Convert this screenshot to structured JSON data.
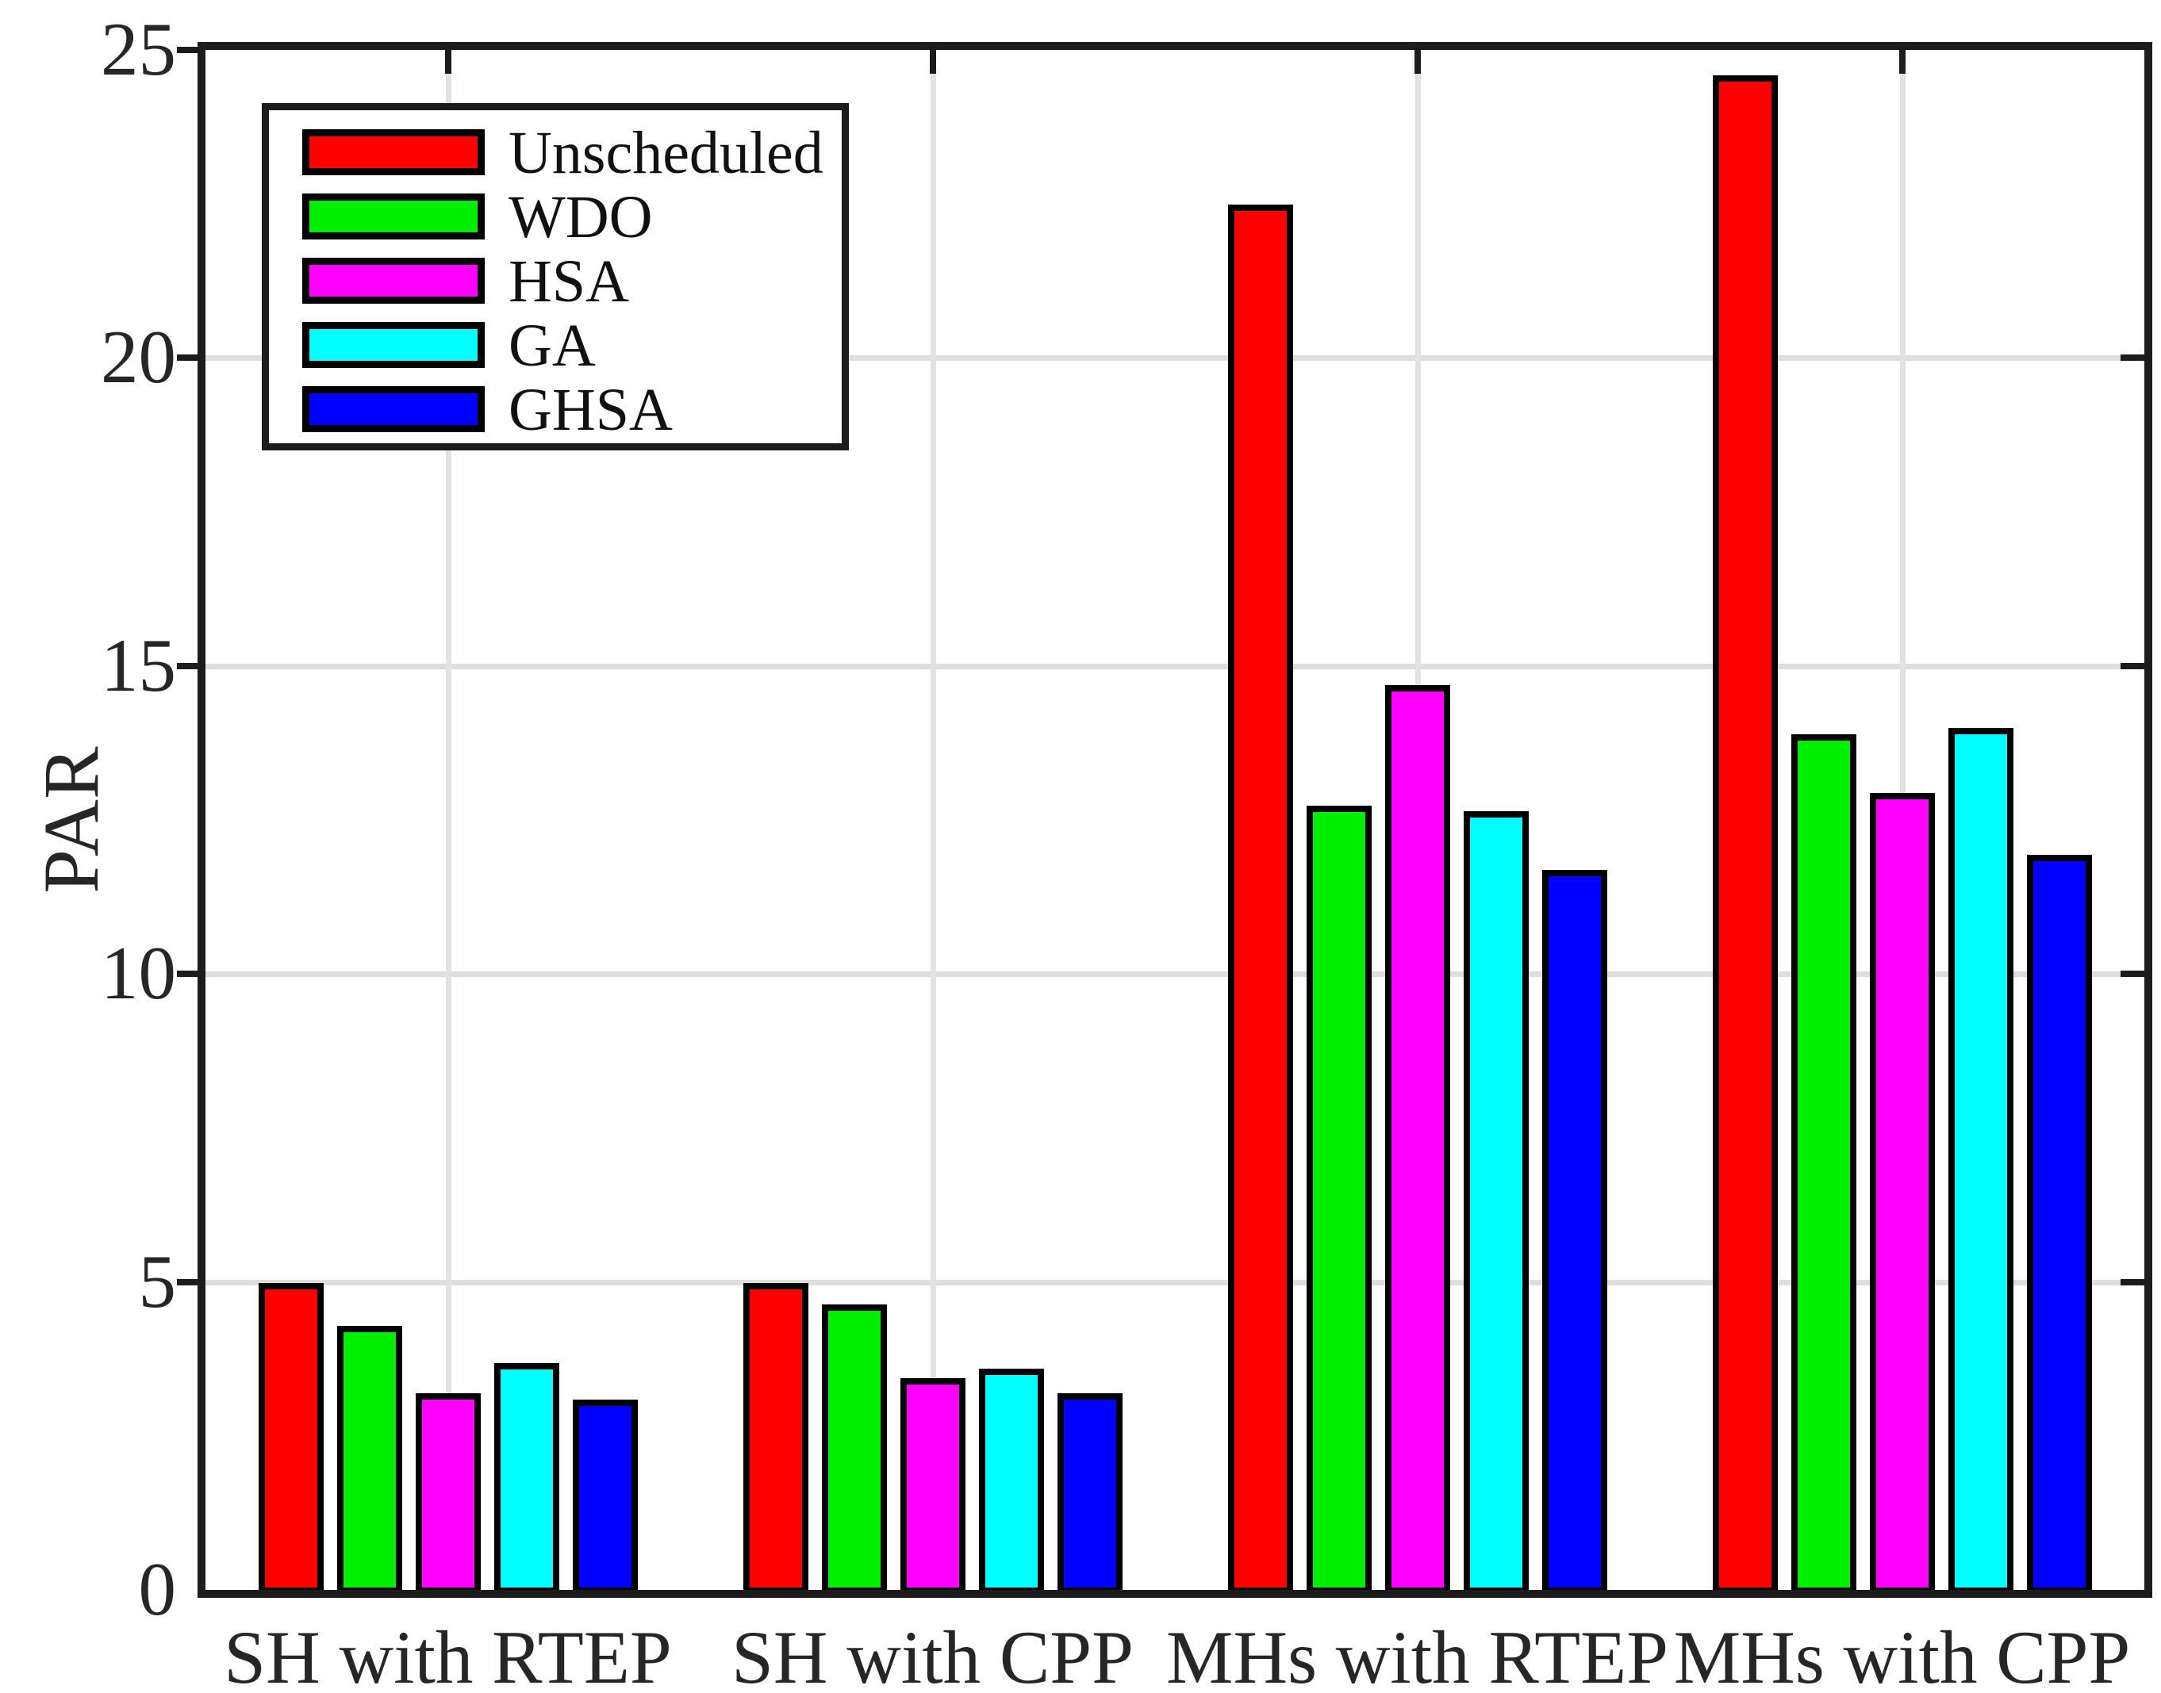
{
  "figure": {
    "background": "#ffffff",
    "axis_color": "#1c1c1c",
    "grid_color": "#dedede"
  },
  "chart_data": {
    "type": "bar",
    "title": "",
    "xlabel": "",
    "ylabel": "PAR",
    "categories": [
      "SH with RTEP",
      "SH with CPP",
      "MHs with RTEP",
      "MHs with CPP"
    ],
    "series": [
      {
        "name": "Unscheduled",
        "color": "#ff0000",
        "values": [
          5.0,
          5.0,
          22.5,
          24.6
        ]
      },
      {
        "name": "WDO",
        "color": "#00ee00",
        "values": [
          4.3,
          4.65,
          12.75,
          13.9
        ]
      },
      {
        "name": "HSA",
        "color": "#ff00ff",
        "values": [
          3.2,
          3.45,
          14.7,
          12.95
        ]
      },
      {
        "name": "GA",
        "color": "#00ffff",
        "values": [
          3.7,
          3.6,
          12.65,
          14.0
        ]
      },
      {
        "name": "GHSA",
        "color": "#0000ff",
        "values": [
          3.1,
          3.2,
          11.7,
          11.95
        ]
      }
    ],
    "ylim": [
      0,
      25
    ],
    "yticks": [
      0,
      5,
      10,
      15,
      20,
      25
    ],
    "grid": "on",
    "legend_position": "top-left",
    "bar_edge_color": "#000000"
  }
}
